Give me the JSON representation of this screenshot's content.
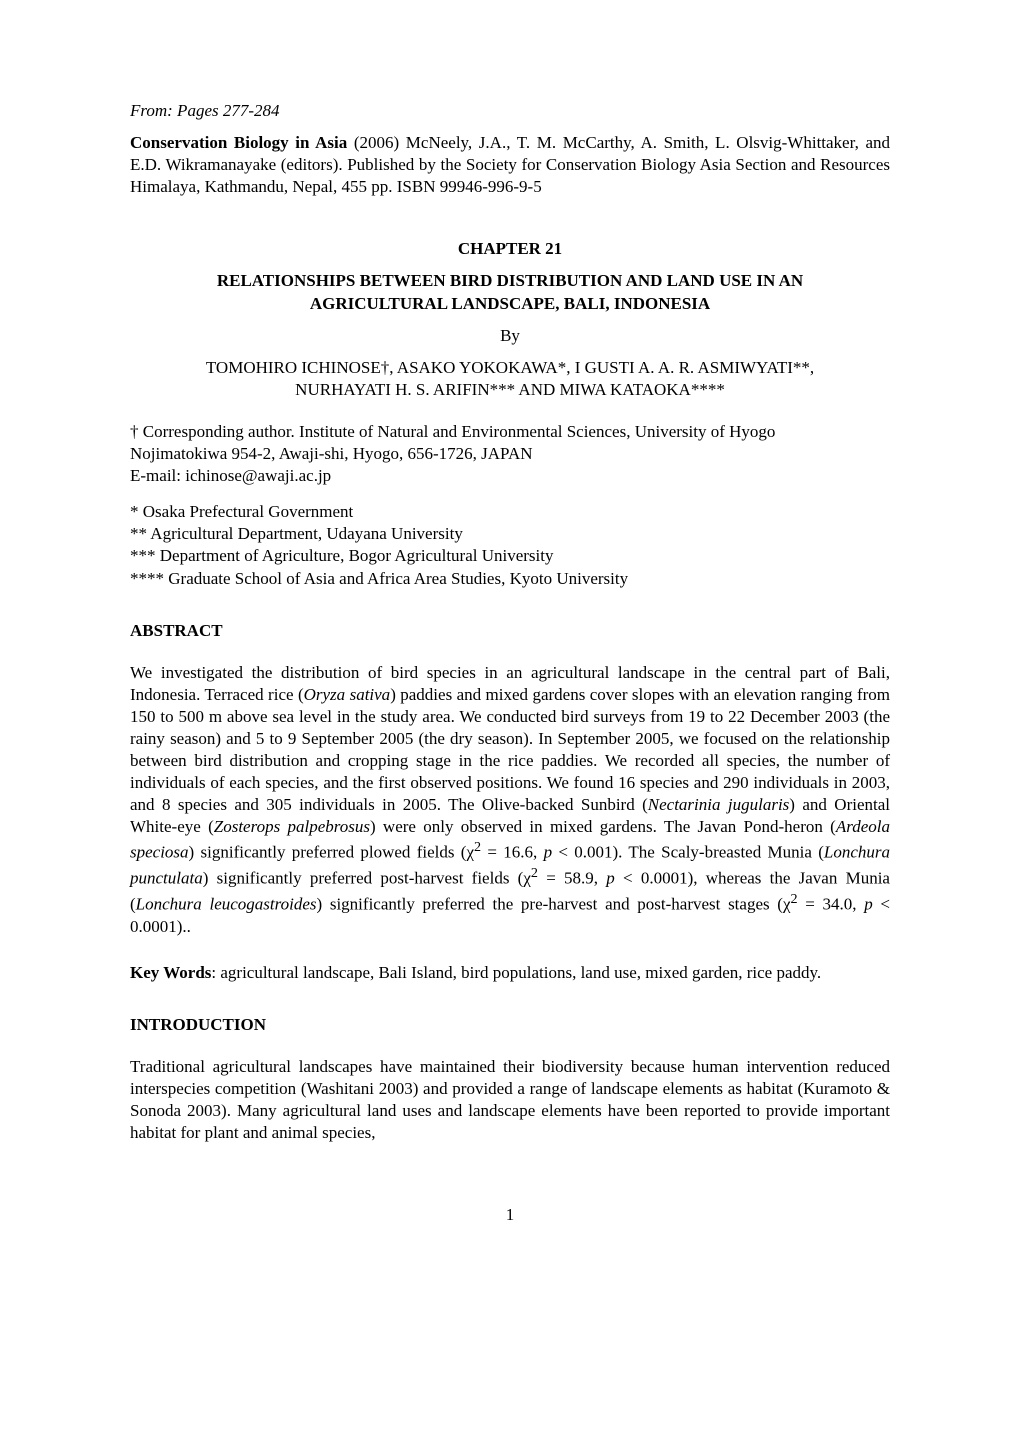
{
  "from_line": "From: Pages 277-284",
  "citation": {
    "title": "Conservation Biology in Asia",
    "rest": " (2006) McNeely, J.A., T. M. McCarthy, A. Smith, L. Olsvig-Whittaker, and E.D. Wikramanayake (editors). Published by the Society for Conservation Biology Asia Section and Resources Himalaya, Kathmandu, Nepal, 455 pp. ISBN 99946-996-9-5"
  },
  "chapter_heading": "CHAPTER 21",
  "paper_title_line1": "RELATIONSHIPS BETWEEN BIRD DISTRIBUTION AND LAND USE IN AN",
  "paper_title_line2": "AGRICULTURAL LANDSCAPE, BALI, INDONESIA",
  "by_label": "By",
  "authors_line1": "TOMOHIRO ICHINOSE†, ASAKO YOKOKAWA*, I GUSTI A. A. R. ASMIWYATI**,",
  "authors_line2": "NURHAYATI H. S. ARIFIN*** AND MIWA KATAOKA****",
  "corresponding": {
    "line1": "† Corresponding author. Institute of Natural and Environmental Sciences, University of Hyogo",
    "line2": "Nojimatokiwa 954-2, Awaji-shi, Hyogo, 656-1726, JAPAN",
    "line3": "E-mail: ichinose@awaji.ac.jp"
  },
  "affils": [
    "* Osaka Prefectural Government",
    "** Agricultural Department, Udayana University",
    "*** Department of Agriculture, Bogor Agricultural University",
    "**** Graduate School of Asia and Africa Area Studies, Kyoto University"
  ],
  "abstract_heading": "ABSTRACT",
  "abstract_html": "We investigated the distribution of bird species in an agricultural landscape in the central part of Bali, Indonesia. Terraced rice (<span class=\"italic\">Oryza sativa</span>) paddies and mixed gardens cover slopes with an elevation ranging from 150 to 500 m above sea level in the study area. We conducted bird surveys from 19 to 22 December 2003 (the rainy season) and 5 to 9 September 2005 (the dry season). In September 2005, we focused on the relationship between bird distribution and cropping stage in the rice paddies. We recorded all species, the number of individuals of each species, and the first observed positions. We found 16 species and 290 individuals in 2003, and 8 species and 305 individuals in 2005. The Olive-backed Sunbird (<span class=\"italic\">Nectarinia jugularis</span>) and Oriental White-eye (<span class=\"italic\">Zosterops palpebrosus</span>) were only observed in mixed gardens. The Javan Pond-heron (<span class=\"italic\">Ardeola speciosa</span>) significantly preferred plowed fields (χ<sup>2</sup> = 16.6, <span class=\"italic\">p</span> &lt; 0.001). The Scaly-breasted Munia (<span class=\"italic\">Lonchura punctulata</span>) significantly preferred post-harvest fields (χ<sup>2</sup> = 58.9, <span class=\"italic\">p</span> &lt; 0.0001), whereas the Javan Munia (<span class=\"italic\">Lonchura leucogastroides</span>) significantly preferred the pre-harvest and post-harvest stages (χ<sup>2</sup> = 34.0, <span class=\"italic\">p</span> &lt; 0.0001)..",
  "keywords_label": "Key Words",
  "keywords_text": ": agricultural landscape, Bali Island, bird populations, land use, mixed garden, rice paddy.",
  "introduction_heading": "INTRODUCTION",
  "introduction_text": "Traditional agricultural landscapes have maintained their biodiversity because human intervention reduced interspecies competition (Washitani 2003) and provided a range of landscape elements as habitat (Kuramoto & Sonoda 2003). Many agricultural land uses and landscape elements have been reported to provide important habitat for plant and animal species,",
  "page_number": "1"
}
